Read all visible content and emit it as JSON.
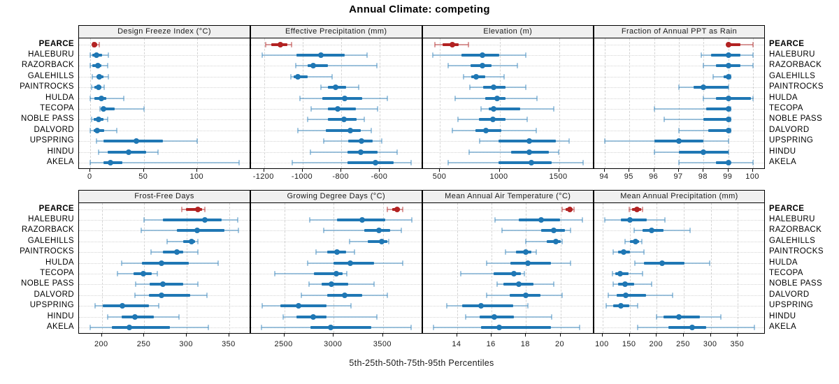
{
  "title": "Annual Climate: competing",
  "footer": "5th-25th-50th-75th-95th Percentiles",
  "highlight_site": "PEARCE",
  "sites": [
    "PEARCE",
    "HALEBURU",
    "RAZORBACK",
    "GALEHILLS",
    "PAINTROCKS",
    "HULDA",
    "TECOPA",
    "NOBLE PASS",
    "DALVORD",
    "UPSPRING",
    "HINDU",
    "AKELA"
  ],
  "colors": {
    "base": "#1f77b4",
    "base_light": "rgba(31,119,180,0.42)",
    "highlight": "#b22222",
    "highlight_light": "rgba(178,34,34,0.45)",
    "strip_bg": "#f0f0f0",
    "grid": "#d4d4d4"
  },
  "chart_data": {
    "type": "dotplot-trellis",
    "layout": "2 rows x 4 columns, shared site axis, percentile whisker plots",
    "percentiles": [
      5,
      25,
      50,
      75,
      95
    ],
    "panels": [
      {
        "title": "Design Freeze Index (°C)",
        "domain": [
          -10.6,
          148.8
        ],
        "ticks": [
          0,
          50,
          100
        ],
        "values": [
          [
            2.5,
            3,
            4,
            6.5,
            8.5
          ],
          [
            0,
            2,
            6,
            11,
            17
          ],
          [
            0,
            2,
            7,
            10,
            16
          ],
          [
            2,
            6,
            8.5,
            12,
            17
          ],
          [
            1,
            4,
            7.5,
            10,
            13
          ],
          [
            0,
            4,
            10,
            15,
            31
          ],
          [
            9,
            10,
            12.5,
            23,
            50
          ],
          [
            1,
            3,
            8,
            12,
            16
          ],
          [
            0,
            3,
            6.5,
            13,
            25
          ],
          [
            6,
            12,
            43,
            68,
            100
          ],
          [
            8,
            16,
            36,
            52,
            63
          ],
          [
            0,
            12,
            18.5,
            30,
            139
          ]
        ]
      },
      {
        "title": "Effective Precipitation (mm)",
        "domain": [
          -1268,
          -386
        ],
        "ticks": [
          -1200,
          -1000,
          -800,
          -600
        ],
        "values": [
          [
            -1192,
            -1163,
            -1115,
            -1081,
            -1057
          ],
          [
            -1211,
            -1033,
            -907,
            -783,
            -666
          ],
          [
            -1037,
            -973,
            -944,
            -871,
            -616
          ],
          [
            -1063,
            -1048,
            -1025,
            -973,
            -847
          ],
          [
            -907,
            -871,
            -829,
            -775,
            -710
          ],
          [
            -1015,
            -898,
            -784,
            -691,
            -563
          ],
          [
            -955,
            -871,
            -820,
            -724,
            -611
          ],
          [
            -976,
            -871,
            -787,
            -721,
            -682
          ],
          [
            -1024,
            -879,
            -754,
            -699,
            -644
          ],
          [
            -892,
            -764,
            -695,
            -638,
            -592
          ],
          [
            -959,
            -769,
            -698,
            -613,
            -511
          ],
          [
            -1055,
            -767,
            -623,
            -530,
            -440
          ]
        ]
      },
      {
        "title": "Elevation (m)",
        "domain": [
          353,
          1785
        ],
        "ticks": [
          500,
          1000,
          1500
        ],
        "values": [
          [
            453,
            523,
            605,
            653,
            737
          ],
          [
            439,
            679,
            854,
            998,
            1218
          ],
          [
            570,
            757,
            854,
            935,
            1150
          ],
          [
            698,
            764,
            805,
            881,
            1037
          ],
          [
            751,
            862,
            951,
            1052,
            1223
          ],
          [
            624,
            881,
            978,
            1048,
            1314
          ],
          [
            842,
            906,
            951,
            1174,
            1457
          ],
          [
            649,
            828,
            945,
            1048,
            1233
          ],
          [
            605,
            799,
            887,
            1017,
            1309
          ],
          [
            834,
            990,
            1250,
            1476,
            1587
          ],
          [
            745,
            1097,
            1250,
            1412,
            1495
          ],
          [
            566,
            994,
            1270,
            1441,
            1704
          ]
        ]
      },
      {
        "title": "Fraction of Annual PPT as Rain",
        "domain": [
          93.58,
          100.45
        ],
        "ticks": [
          94,
          95,
          96,
          97,
          98,
          99,
          100
        ],
        "values": [
          [
            99,
            99,
            99,
            99.5,
            100
          ],
          [
            97.9,
            98.3,
            99,
            99.5,
            100
          ],
          [
            98,
            98.5,
            99,
            99.5,
            100
          ],
          [
            98.4,
            98.8,
            99,
            99,
            99.1
          ],
          [
            97,
            97.6,
            98,
            99,
            99
          ],
          [
            98,
            98.5,
            99,
            99.9,
            100
          ],
          [
            96,
            98.1,
            99,
            99,
            99.1
          ],
          [
            96.4,
            98,
            99,
            99,
            99.1
          ],
          [
            97,
            98.2,
            99,
            99,
            99.1
          ],
          [
            94,
            96,
            97,
            98,
            99
          ],
          [
            96,
            97,
            98,
            99,
            99
          ],
          [
            97,
            98.5,
            99,
            99.1,
            100
          ]
        ]
      },
      {
        "title": "Frost-Free Days",
        "domain": [
          173,
          374
        ],
        "ticks": [
          200,
          250,
          300,
          350
        ],
        "values": [
          [
            294,
            299,
            313,
            318,
            321
          ],
          [
            250,
            272,
            321,
            341,
            360
          ],
          [
            246,
            288,
            312,
            344,
            361
          ],
          [
            277,
            296,
            306,
            310,
            313
          ],
          [
            258,
            272,
            288,
            296,
            313
          ],
          [
            223,
            247,
            270,
            302,
            337
          ],
          [
            218,
            237,
            249,
            259,
            265
          ],
          [
            240,
            256,
            272,
            296,
            313
          ],
          [
            239,
            255,
            270,
            304,
            324
          ],
          [
            192,
            201,
            224,
            255,
            267
          ],
          [
            207,
            223,
            239,
            261,
            291
          ],
          [
            186,
            212,
            232,
            280,
            325
          ]
        ]
      },
      {
        "title": "Growing Degree Days (°C)",
        "domain": [
          2163,
          3887
        ],
        "ticks": [
          2500,
          3000,
          3500
        ],
        "values": [
          [
            3547,
            3590,
            3641,
            3672,
            3700
          ],
          [
            2758,
            3032,
            3289,
            3524,
            3793
          ],
          [
            2896,
            3313,
            3460,
            3571,
            3683
          ],
          [
            3161,
            3348,
            3489,
            3547,
            3559
          ],
          [
            2821,
            2938,
            3032,
            3125,
            3208
          ],
          [
            2739,
            2997,
            3168,
            3407,
            3700
          ],
          [
            2407,
            2797,
            3027,
            3090,
            3132
          ],
          [
            2751,
            2880,
            2980,
            3149,
            3407
          ],
          [
            2676,
            2938,
            3109,
            3289,
            3542
          ],
          [
            2275,
            2458,
            2645,
            2926,
            3173
          ],
          [
            2486,
            2622,
            2793,
            2926,
            3437
          ],
          [
            2266,
            2762,
            2969,
            3383,
            3781
          ]
        ]
      },
      {
        "title": "Mean Annual Air Temperature (°C)",
        "domain": [
          11.99,
          21.89
        ],
        "ticks": [
          14,
          16,
          18,
          20
        ],
        "values": [
          [
            20.1,
            20.3,
            20.55,
            20.7,
            20.8
          ],
          [
            16.2,
            17.6,
            18.9,
            20,
            21.3
          ],
          [
            16.6,
            18.9,
            19.6,
            20.25,
            20.6
          ],
          [
            18,
            19.2,
            19.75,
            20,
            20.1
          ],
          [
            16.8,
            17.4,
            18,
            18.3,
            18.6
          ],
          [
            15.7,
            17.1,
            18.1,
            19.45,
            20.6
          ],
          [
            14.2,
            16.1,
            17.3,
            17.7,
            17.9
          ],
          [
            16.3,
            16.7,
            17.6,
            18.45,
            19.6
          ],
          [
            15.7,
            17.05,
            18,
            18.85,
            20.1
          ],
          [
            13.4,
            14.3,
            15.4,
            17.25,
            18.1
          ],
          [
            14.5,
            15.3,
            16.15,
            17.3,
            19.5
          ],
          [
            12.6,
            15.4,
            16.45,
            19.45,
            21.1
          ]
        ]
      },
      {
        "title": "Mean Annual Precipitation (mm)",
        "domain": [
          84.6,
          398.7
        ],
        "ticks": [
          100,
          150,
          200,
          250,
          300,
          350
        ],
        "values": [
          [
            149,
            154,
            163,
            171,
            174
          ],
          [
            104,
            134,
            150,
            181,
            215
          ],
          [
            158,
            174,
            190,
            212,
            262
          ],
          [
            141,
            151,
            161,
            167,
            173
          ],
          [
            120,
            129,
            139,
            150,
            176
          ],
          [
            160,
            177,
            210,
            251,
            298
          ],
          [
            118,
            123,
            132,
            148,
            174
          ],
          [
            119,
            129,
            141,
            158,
            190
          ],
          [
            111,
            126,
            143,
            180,
            230
          ],
          [
            106,
            120,
            134,
            149,
            165
          ],
          [
            200,
            213,
            241,
            280,
            318
          ],
          [
            165,
            221,
            265,
            291,
            380
          ]
        ]
      }
    ]
  }
}
